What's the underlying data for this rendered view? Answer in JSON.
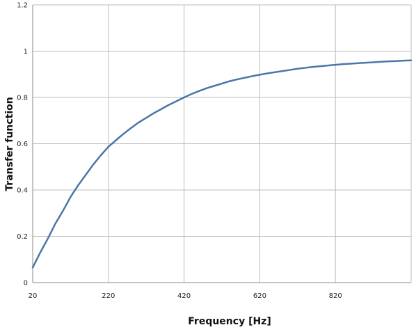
{
  "chart_data": {
    "type": "line",
    "title": "",
    "xlabel": "Frequency [Hz]",
    "ylabel": "Transfer function",
    "xlim": [
      20,
      1020
    ],
    "ylim": [
      0,
      1.2
    ],
    "xticks": [
      "20",
      "220",
      "420",
      "620",
      "820"
    ],
    "yticks": [
      "0",
      "0.2",
      "0.4",
      "0.6",
      "0.8",
      "1",
      "1.2"
    ],
    "grid": true,
    "legend": "none",
    "series": [
      {
        "color": "#4a76a8",
        "x": [
          20,
          40,
          60,
          80,
          100,
          120,
          140,
          160,
          180,
          200,
          220,
          240,
          260,
          280,
          300,
          320,
          340,
          360,
          380,
          400,
          420,
          440,
          460,
          480,
          500,
          520,
          540,
          560,
          580,
          600,
          620,
          640,
          660,
          680,
          700,
          720,
          740,
          760,
          780,
          800,
          820,
          840,
          860,
          880,
          900,
          920,
          940,
          960,
          980,
          1000,
          1020
        ],
        "y": [
          0.065,
          0.13,
          0.19,
          0.255,
          0.31,
          0.37,
          0.42,
          0.465,
          0.51,
          0.55,
          0.587,
          0.615,
          0.643,
          0.668,
          0.692,
          0.712,
          0.732,
          0.75,
          0.768,
          0.784,
          0.8,
          0.815,
          0.828,
          0.84,
          0.85,
          0.86,
          0.87,
          0.878,
          0.885,
          0.892,
          0.898,
          0.904,
          0.909,
          0.914,
          0.919,
          0.924,
          0.928,
          0.932,
          0.935,
          0.938,
          0.941,
          0.944,
          0.946,
          0.948,
          0.95,
          0.952,
          0.954,
          0.956,
          0.957,
          0.959,
          0.96
        ]
      }
    ]
  }
}
